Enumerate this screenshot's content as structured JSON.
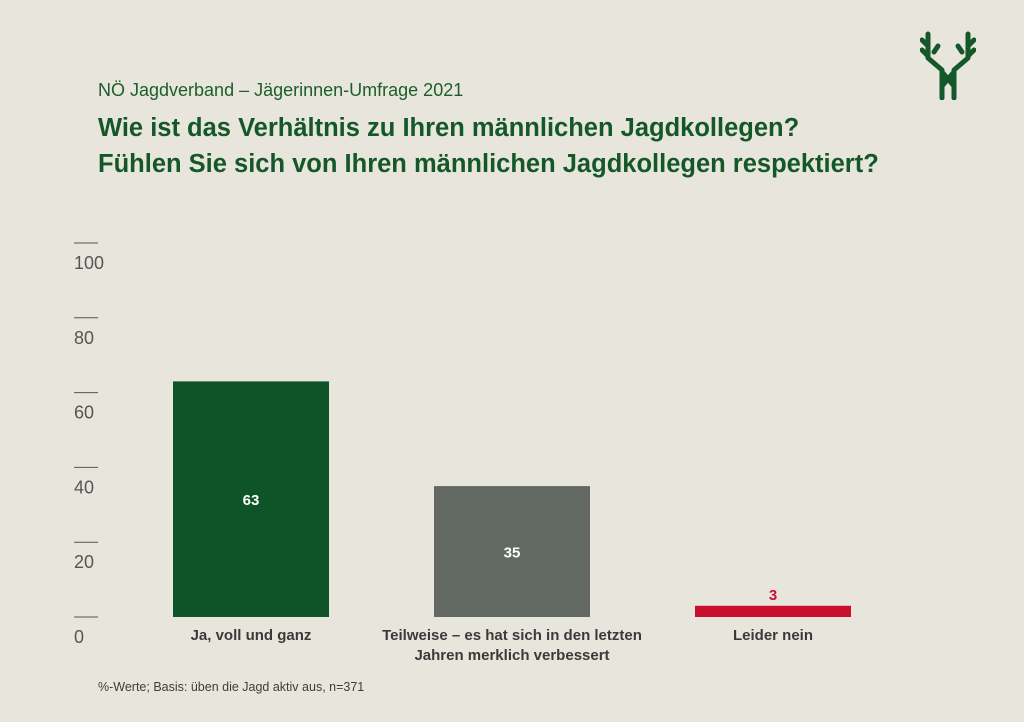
{
  "header": {
    "subtitle": "NÖ Jagdverband – Jägerinnen-Umfrage 2021",
    "title_line1": "Wie ist das Verhältnis zu Ihren männlichen Jagdkollegen?",
    "title_line2": "Fühlen Sie sich von Ihren männlichen Jagdkollegen respektiert?"
  },
  "logo": {
    "icon": "antler-tree-logo-icon",
    "color": "#14582a"
  },
  "footnote": "%-Werte; Basis: üben die Jagd aktiv aus, n=371",
  "chart_data": {
    "type": "bar",
    "categories": [
      [
        "Ja, voll und ganz"
      ],
      [
        "Teilweise – es hat sich in den letzten",
        "Jahren merklich verbessert"
      ],
      [
        "Leider nein"
      ]
    ],
    "values": [
      63,
      35,
      3
    ],
    "value_labels": [
      "63",
      "35",
      "3"
    ],
    "bar_colors": [
      "#0f5428",
      "#626963",
      "#c8102e"
    ],
    "label_colors": [
      "#ffffff",
      "#ffffff",
      "#c8102e"
    ],
    "yticks": [
      0,
      20,
      40,
      60,
      80,
      100
    ],
    "ylim": [
      0,
      100
    ],
    "grid": false
  }
}
